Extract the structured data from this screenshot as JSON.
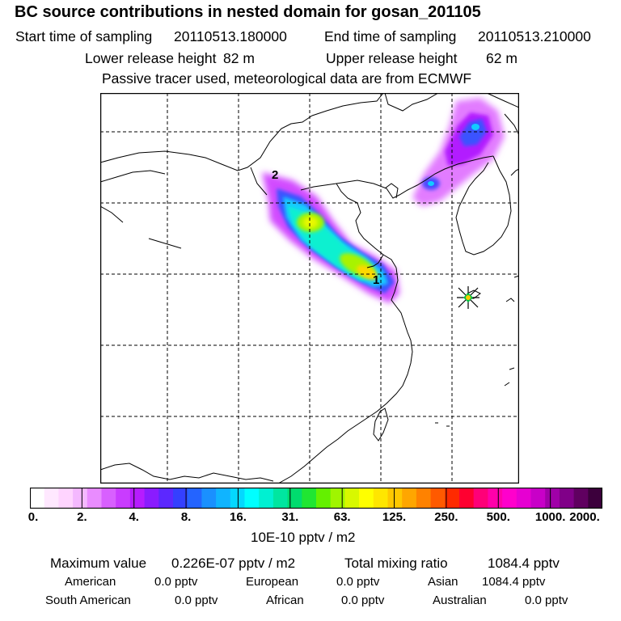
{
  "header": {
    "title": "BC  source contributions in nested domain for gosan_201105",
    "start_label": "Start time of sampling",
    "start_value": "20110513.180000",
    "end_label": "End time of sampling",
    "end_value": "20110513.210000",
    "lower_label": "Lower release height",
    "lower_value": "82 m",
    "upper_label": "Upper release height",
    "upper_value": "62 m",
    "note": "Passive tracer used, meteorological data are from ECMWF"
  },
  "chart_data": {
    "type": "heatmap",
    "title": "BC  source contributions in nested domain for gosan_201105",
    "units": "10E-10 pptv / m2",
    "scale_ticks": [
      "0.",
      "2.",
      "4.",
      "8.",
      "16.",
      "31.",
      "63.",
      "125.",
      "250.",
      "500.",
      "1000.",
      "2000."
    ],
    "scale_colors": [
      "#ffffff",
      "#ffe8ff",
      "#ffd4ff",
      "#f4b8ff",
      "#e98cff",
      "#d860ff",
      "#c93cff",
      "#b61cff",
      "#8a1cff",
      "#5c28ff",
      "#3440ff",
      "#2464ff",
      "#1a90ff",
      "#10b4ff",
      "#04d8ff",
      "#00ffff",
      "#00f0d2",
      "#00e6a0",
      "#00dc6e",
      "#20e632",
      "#64f000",
      "#a0f500",
      "#d8f800",
      "#ffff00",
      "#ffe600",
      "#ffc800",
      "#ffa600",
      "#ff8200",
      "#ff5a00",
      "#ff2a00",
      "#ff0030",
      "#ff0078",
      "#ff00aa",
      "#ff00cc",
      "#e600d2",
      "#c800c8",
      "#a000a8",
      "#800088",
      "#600060",
      "#3c003c"
    ],
    "plume_labels": [
      "1",
      "2"
    ],
    "receptor": "Gosan",
    "max_value": 2.26e-08,
    "total_mixing_ratio": 1084.4
  },
  "stats": {
    "max_label": "Maximum value",
    "max_value": "0.226E-07 pptv / m2",
    "total_label": "Total mixing ratio",
    "total_value": "1084.4 pptv",
    "american_label": "American",
    "american_value": "0.0 pptv",
    "european_label": "European",
    "european_value": "0.0 pptv",
    "asian_label": "Asian",
    "asian_value": "1084.4 pptv",
    "south_american_label": "South American",
    "south_american_value": "0.0 pptv",
    "african_label": "African",
    "african_value": "0.0 pptv",
    "australian_label": "Australian",
    "australian_value": "0.0 pptv"
  }
}
